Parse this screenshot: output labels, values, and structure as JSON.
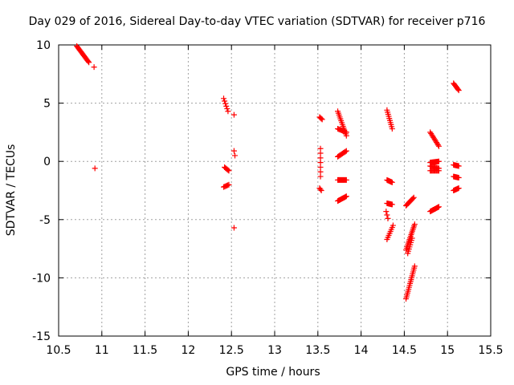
{
  "chart_data": {
    "type": "scatter",
    "title": "Day 029 of 2016, Sidereal Day-to-day VTEC variation (SDTVAR) for receiver p716",
    "xlabel": "GPS time / hours",
    "ylabel": "SDTVAR / TECUs",
    "xlim": [
      10.5,
      15.5
    ],
    "ylim": [
      -15,
      10
    ],
    "xticks": [
      10.5,
      11,
      11.5,
      12,
      12.5,
      13,
      13.5,
      14,
      14.5,
      15,
      15.5
    ],
    "xtick_labels": [
      "10.5",
      "11",
      "11.5",
      "12",
      "12.5",
      "13",
      "13.5",
      "14",
      "14.5",
      "15",
      "15.5"
    ],
    "yticks": [
      -15,
      -10,
      -5,
      0,
      5,
      10
    ],
    "ytick_labels": [
      "-15",
      "-10",
      "-5",
      "0",
      "5",
      "10"
    ],
    "grid": true,
    "marker": "+",
    "color": "#ff0000",
    "segments": [
      {
        "x0": 10.71,
        "y0": 9.9,
        "x1": 10.85,
        "y1": 8.5,
        "n": 18
      },
      {
        "x0": 10.91,
        "y0": 8.1,
        "x1": 10.91,
        "y1": 8.1,
        "n": 1
      },
      {
        "x0": 10.92,
        "y0": -0.6,
        "x1": 10.92,
        "y1": -0.6,
        "n": 1
      },
      {
        "x0": 12.41,
        "y0": 5.4,
        "x1": 12.46,
        "y1": 4.3,
        "n": 6
      },
      {
        "x0": 12.53,
        "y0": 4.0,
        "x1": 12.53,
        "y1": 4.0,
        "n": 1
      },
      {
        "x0": 12.42,
        "y0": -0.5,
        "x1": 12.47,
        "y1": -0.8,
        "n": 6
      },
      {
        "x0": 12.41,
        "y0": -2.2,
        "x1": 12.47,
        "y1": -2.0,
        "n": 6
      },
      {
        "x0": 12.53,
        "y0": 0.9,
        "x1": 12.54,
        "y1": 0.5,
        "n": 2
      },
      {
        "x0": 12.53,
        "y0": -5.7,
        "x1": 12.53,
        "y1": -5.7,
        "n": 1
      },
      {
        "x0": 13.52,
        "y0": 3.8,
        "x1": 13.55,
        "y1": 3.6,
        "n": 4
      },
      {
        "x0": 13.53,
        "y0": 1.1,
        "x1": 13.53,
        "y1": -1.3,
        "n": 7
      },
      {
        "x0": 13.52,
        "y0": -2.3,
        "x1": 13.54,
        "y1": -2.5,
        "n": 3
      },
      {
        "x0": 13.73,
        "y0": 4.3,
        "x1": 13.83,
        "y1": 2.2,
        "n": 14
      },
      {
        "x0": 13.73,
        "y0": 2.8,
        "x1": 13.83,
        "y1": 2.5,
        "n": 10
      },
      {
        "x0": 13.73,
        "y0": 0.4,
        "x1": 13.83,
        "y1": 0.9,
        "n": 10
      },
      {
        "x0": 13.73,
        "y0": -1.6,
        "x1": 13.83,
        "y1": -1.6,
        "n": 12
      },
      {
        "x0": 13.73,
        "y0": -3.4,
        "x1": 13.83,
        "y1": -3.0,
        "n": 12
      },
      {
        "x0": 14.3,
        "y0": 4.4,
        "x1": 14.36,
        "y1": 2.8,
        "n": 10
      },
      {
        "x0": 14.3,
        "y0": -1.6,
        "x1": 14.36,
        "y1": -1.8,
        "n": 8
      },
      {
        "x0": 14.3,
        "y0": -3.6,
        "x1": 14.36,
        "y1": -3.7,
        "n": 8
      },
      {
        "x0": 14.29,
        "y0": -4.3,
        "x1": 14.31,
        "y1": -4.9,
        "n": 3
      },
      {
        "x0": 14.3,
        "y0": -6.7,
        "x1": 14.37,
        "y1": -5.5,
        "n": 8
      },
      {
        "x0": 14.52,
        "y0": -3.8,
        "x1": 14.61,
        "y1": -3.1,
        "n": 10
      },
      {
        "x0": 14.52,
        "y0": -7.6,
        "x1": 14.62,
        "y1": -5.4,
        "n": 16
      },
      {
        "x0": 14.54,
        "y0": -7.9,
        "x1": 14.59,
        "y1": -6.6,
        "n": 8
      },
      {
        "x0": 14.52,
        "y0": -11.8,
        "x1": 14.62,
        "y1": -9.0,
        "n": 18
      },
      {
        "x0": 14.8,
        "y0": 2.5,
        "x1": 14.9,
        "y1": 1.3,
        "n": 12
      },
      {
        "x0": 14.8,
        "y0": -0.1,
        "x1": 14.9,
        "y1": 0.0,
        "n": 12
      },
      {
        "x0": 14.8,
        "y0": -0.4,
        "x1": 14.9,
        "y1": -0.6,
        "n": 10
      },
      {
        "x0": 14.8,
        "y0": -0.8,
        "x1": 14.9,
        "y1": -0.8,
        "n": 10
      },
      {
        "x0": 14.8,
        "y0": -4.3,
        "x1": 14.9,
        "y1": -3.9,
        "n": 12
      },
      {
        "x0": 15.07,
        "y0": 6.7,
        "x1": 15.13,
        "y1": 6.1,
        "n": 8
      },
      {
        "x0": 15.07,
        "y0": -0.3,
        "x1": 15.13,
        "y1": -0.4,
        "n": 8
      },
      {
        "x0": 15.07,
        "y0": -1.3,
        "x1": 15.13,
        "y1": -1.4,
        "n": 8
      },
      {
        "x0": 15.07,
        "y0": -2.5,
        "x1": 15.13,
        "y1": -2.3,
        "n": 8
      }
    ]
  }
}
